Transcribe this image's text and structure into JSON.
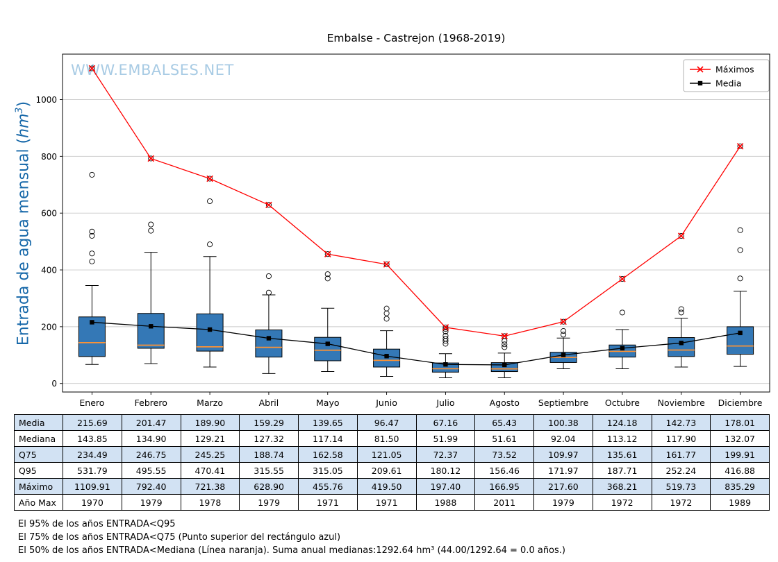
{
  "chart_data": {
    "type": "boxplot",
    "title": "Embalse - Castrejon (1968-2019)",
    "watermark": "WWW.EMBALSES.NET",
    "ylabel": "Entrada de agua mensual (hm³)",
    "ylabel_parts": {
      "prefix": "Entrada de agua mensual (",
      "unit": "hm",
      "exp": "3",
      "suffix": ")"
    },
    "categories": [
      "Enero",
      "Febrero",
      "Marzo",
      "Abril",
      "Mayo",
      "Junio",
      "Julio",
      "Agosto",
      "Septiembre",
      "Octubre",
      "Noviembre",
      "Diciembre"
    ],
    "ylim": [
      -30,
      1160
    ],
    "yticks": [
      0,
      200,
      400,
      600,
      800,
      1000
    ],
    "grid": "horizontal",
    "legend_position": "top-right",
    "series": [
      {
        "name": "Máximos",
        "marker": "x",
        "color": "#ff0000",
        "values": [
          1109.91,
          792.4,
          721.38,
          628.9,
          455.76,
          419.5,
          197.4,
          166.95,
          217.6,
          368.21,
          519.73,
          835.29
        ]
      },
      {
        "name": "Media",
        "marker": "square",
        "color": "#000000",
        "values": [
          215.69,
          201.47,
          189.9,
          159.29,
          139.65,
          96.47,
          67.16,
          65.43,
          100.38,
          124.18,
          142.73,
          178.01
        ]
      }
    ],
    "boxplot": {
      "median": [
        143.85,
        134.9,
        129.21,
        127.32,
        117.14,
        81.5,
        51.99,
        51.61,
        92.04,
        113.12,
        117.9,
        132.07
      ],
      "q75": [
        234.49,
        246.75,
        245.25,
        188.74,
        162.58,
        121.05,
        72.37,
        73.52,
        109.97,
        135.61,
        161.77,
        199.91
      ],
      "q25": [
        95,
        124,
        114,
        93,
        80,
        58,
        40,
        42,
        74,
        93,
        95,
        103
      ],
      "whisker_low": [
        67,
        70,
        58,
        35,
        42,
        25,
        20,
        20,
        52,
        52,
        58,
        60
      ],
      "whisker_high": [
        345,
        462,
        447,
        312,
        265,
        186,
        105,
        107,
        160,
        190,
        230,
        325
      ],
      "outliers": [
        [
          430,
          458,
          520,
          535,
          735,
          1109.91
        ],
        [
          538,
          560,
          792.4
        ],
        [
          490,
          642,
          721.38
        ],
        [
          320,
          378,
          628.9
        ],
        [
          370,
          385,
          455.76
        ],
        [
          228,
          247,
          264,
          419.5
        ],
        [
          140,
          150,
          158,
          168,
          183,
          192,
          197.4
        ],
        [
          128,
          138,
          150,
          166.95
        ],
        [
          172,
          185,
          217.6
        ],
        [
          250,
          368.21
        ],
        [
          250,
          262,
          519.73
        ],
        [
          370,
          470,
          540,
          835.29
        ]
      ]
    },
    "colors": {
      "box_fill": "#3478b6",
      "median_line": "#ff9333",
      "ylabel": "#1768a9",
      "watermark": "#a8cbe4",
      "grid": "#c9c9c9"
    }
  },
  "table": {
    "row_labels": [
      "Media",
      "Mediana",
      "Q75",
      "Q95",
      "Máximo",
      "Año Max"
    ],
    "rows": [
      [
        "215.69",
        "201.47",
        "189.90",
        "159.29",
        "139.65",
        "96.47",
        "67.16",
        "65.43",
        "100.38",
        "124.18",
        "142.73",
        "178.01"
      ],
      [
        "143.85",
        "134.90",
        "129.21",
        "127.32",
        "117.14",
        "81.50",
        "51.99",
        "51.61",
        "92.04",
        "113.12",
        "117.90",
        "132.07"
      ],
      [
        "234.49",
        "246.75",
        "245.25",
        "188.74",
        "162.58",
        "121.05",
        "72.37",
        "73.52",
        "109.97",
        "135.61",
        "161.77",
        "199.91"
      ],
      [
        "531.79",
        "495.55",
        "470.41",
        "315.55",
        "315.05",
        "209.61",
        "180.12",
        "156.46",
        "171.97",
        "187.71",
        "252.24",
        "416.88"
      ],
      [
        "1109.91",
        "792.40",
        "721.38",
        "628.90",
        "455.76",
        "419.50",
        "197.40",
        "166.95",
        "217.60",
        "368.21",
        "519.73",
        "835.29"
      ],
      [
        "1970",
        "1979",
        "1978",
        "1979",
        "1971",
        "1971",
        "1988",
        "2011",
        "1979",
        "1972",
        "1972",
        "1989"
      ]
    ],
    "shaded_rows": [
      0,
      2,
      4
    ],
    "shade_color": "#d2e2f3"
  },
  "footnotes": [
    "El 95% de los años ENTRADA<Q95",
    "El 75% de los años ENTRADA<Q75 (Punto superior del rectángulo azul)",
    "El 50% de los años ENTRADA<Mediana (Línea naranja). Suma anual medianas:1292.64 hm³ (44.00/1292.64 = 0.0 años.)"
  ]
}
